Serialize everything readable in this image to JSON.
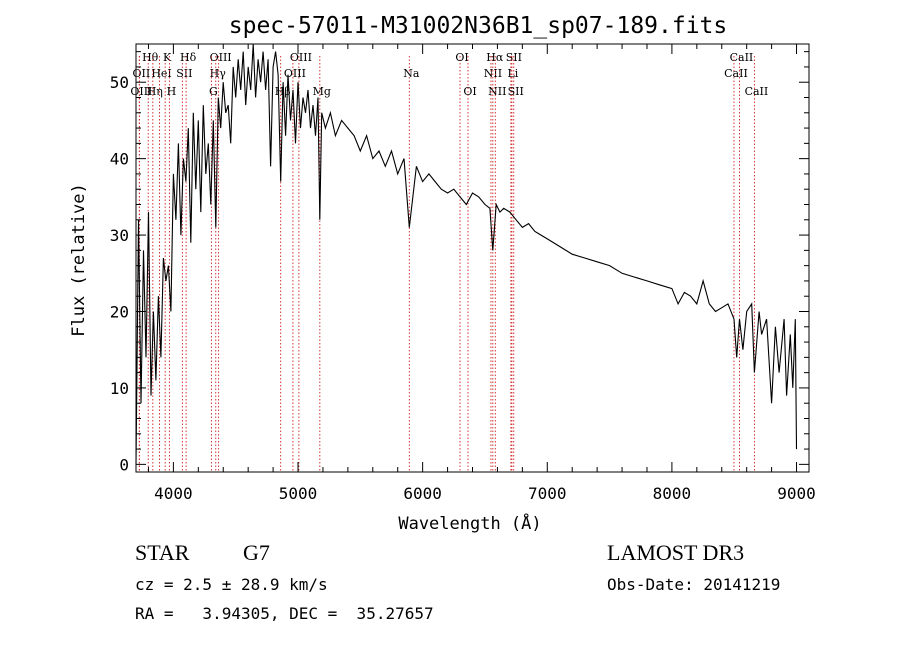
{
  "chart_data": {
    "type": "line",
    "title": "spec-57011-M31002N36B1_sp07-189.fits",
    "xlabel": "Wavelength (Å)",
    "ylabel": "Flux (relative)",
    "xlim": [
      3700,
      9100
    ],
    "ylim": [
      -1,
      55
    ],
    "x_ticks": [
      4000,
      5000,
      6000,
      7000,
      8000,
      9000
    ],
    "y_ticks": [
      0,
      10,
      20,
      30,
      40,
      50
    ],
    "grid": false,
    "series": [
      {
        "name": "flux",
        "x": [
          3700,
          3720,
          3740,
          3760,
          3780,
          3800,
          3820,
          3840,
          3860,
          3880,
          3900,
          3920,
          3940,
          3960,
          3980,
          4000,
          4020,
          4040,
          4060,
          4080,
          4100,
          4120,
          4140,
          4160,
          4180,
          4200,
          4220,
          4240,
          4260,
          4280,
          4300,
          4320,
          4340,
          4360,
          4380,
          4400,
          4420,
          4440,
          4460,
          4480,
          4500,
          4520,
          4540,
          4560,
          4580,
          4600,
          4620,
          4640,
          4660,
          4680,
          4700,
          4720,
          4740,
          4760,
          4780,
          4800,
          4820,
          4840,
          4861,
          4880,
          4900,
          4920,
          4940,
          4960,
          4980,
          5000,
          5020,
          5040,
          5060,
          5080,
          5100,
          5120,
          5140,
          5160,
          5175,
          5190,
          5220,
          5260,
          5300,
          5350,
          5400,
          5450,
          5500,
          5550,
          5600,
          5650,
          5700,
          5750,
          5800,
          5850,
          5893,
          5950,
          6000,
          6050,
          6100,
          6150,
          6200,
          6250,
          6300,
          6350,
          6400,
          6450,
          6500,
          6540,
          6563,
          6590,
          6620,
          6650,
          6700,
          6750,
          6800,
          6850,
          6900,
          6950,
          7000,
          7100,
          7200,
          7300,
          7400,
          7500,
          7600,
          7700,
          7800,
          7900,
          8000,
          8050,
          8100,
          8150,
          8200,
          8250,
          8300,
          8350,
          8400,
          8450,
          8498,
          8520,
          8542,
          8570,
          8600,
          8640,
          8662,
          8700,
          8720,
          8760,
          8800,
          8830,
          8860,
          8900,
          8920,
          8950,
          8970,
          8990,
          9000
        ],
        "values": [
          0,
          32,
          8,
          28,
          14,
          33,
          9,
          20,
          11,
          22,
          14,
          27,
          24,
          26,
          20,
          38,
          32,
          42,
          30,
          40,
          37,
          44,
          29,
          46,
          36,
          45,
          33,
          47,
          38,
          42,
          34,
          45,
          31,
          48,
          44,
          50,
          46,
          47,
          42,
          52,
          48,
          53,
          49,
          54,
          47,
          52,
          49,
          55,
          48,
          53,
          50,
          54,
          49,
          53,
          39,
          52,
          54,
          51,
          37,
          50,
          43,
          51,
          45,
          49,
          42,
          50,
          44,
          48,
          46,
          49,
          44,
          47,
          43,
          48,
          32,
          46,
          44,
          46,
          43,
          45,
          44,
          43,
          41,
          43,
          40,
          41,
          39,
          41,
          38,
          40,
          31,
          39,
          37,
          38,
          37,
          36,
          35.5,
          36,
          35,
          34,
          35.5,
          35,
          34,
          33.5,
          28,
          34,
          33,
          33.5,
          33,
          32,
          31,
          31.5,
          30.5,
          30,
          29.5,
          28.5,
          27.5,
          27,
          26.5,
          26,
          25,
          24.5,
          24,
          23.5,
          23,
          21,
          22.5,
          22,
          21,
          24,
          21,
          20,
          20.5,
          21,
          19,
          14,
          19,
          15,
          20,
          21,
          12,
          20,
          17,
          19,
          8,
          18,
          12,
          19,
          9,
          17,
          10,
          19,
          2
        ]
      }
    ],
    "line_markers": [
      {
        "name": "Hθ",
        "x": 3798,
        "row": 1
      },
      {
        "name": "OII",
        "x": 3727,
        "row": 2
      },
      {
        "name": "OIII",
        "x": 3727,
        "row": 3
      },
      {
        "name": "K",
        "x": 3934,
        "row": 1
      },
      {
        "name": "HeI",
        "x": 3889,
        "row": 2
      },
      {
        "name": "Hη",
        "x": 3835,
        "row": 3
      },
      {
        "name": "SII",
        "x": 4072,
        "row": 2
      },
      {
        "name": "H",
        "x": 3968,
        "row": 3
      },
      {
        "name": "Hδ",
        "x": 4102,
        "row": 1
      },
      {
        "name": "OIII",
        "x": 4363,
        "row": 1
      },
      {
        "name": "Hγ",
        "x": 4340,
        "row": 2
      },
      {
        "name": "G",
        "x": 4305,
        "row": 3
      },
      {
        "name": "OIII",
        "x": 5007,
        "row": 1
      },
      {
        "name": "OIII",
        "x": 4959,
        "row": 2
      },
      {
        "name": "Hβ",
        "x": 4861,
        "row": 3
      },
      {
        "name": "Mg",
        "x": 5175,
        "row": 3
      },
      {
        "name": "Na",
        "x": 5893,
        "row": 2
      },
      {
        "name": "OI",
        "x": 6300,
        "row": 1
      },
      {
        "name": "OI",
        "x": 6364,
        "row": 3
      },
      {
        "name": "Hα",
        "x": 6563,
        "row": 1
      },
      {
        "name": "NII",
        "x": 6548,
        "row": 2
      },
      {
        "name": "NII",
        "x": 6583,
        "row": 3
      },
      {
        "name": "SII",
        "x": 6716,
        "row": 1
      },
      {
        "name": "Li",
        "x": 6708,
        "row": 2
      },
      {
        "name": "SII",
        "x": 6731,
        "row": 3
      },
      {
        "name": "CaII",
        "x": 8542,
        "row": 1
      },
      {
        "name": "CaII",
        "x": 8498,
        "row": 2
      },
      {
        "name": "CaII",
        "x": 8662,
        "row": 3
      }
    ]
  },
  "info": {
    "class_label": "STAR",
    "subclass": "G7",
    "survey": "LAMOST DR3",
    "cz_line": "cz = 2.5 ± 28.9 km/s",
    "obs_date_line": "Obs-Date: 20141219",
    "radec_line": "RA =   3.94305, DEC =  35.27657"
  }
}
